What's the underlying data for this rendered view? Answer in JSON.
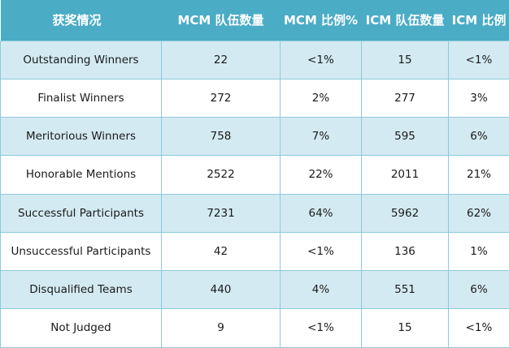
{
  "table": {
    "headers": [
      "获奖情况",
      "MCM 队伍数量",
      "MCM 比例%",
      "ICM 队伍数量",
      "ICM 比例"
    ],
    "rows": [
      [
        "Outstanding Winners",
        "22",
        "<1%",
        "15",
        "<1%"
      ],
      [
        "Finalist Winners",
        "272",
        "2%",
        "277",
        "3%"
      ],
      [
        "Meritorious Winners",
        "758",
        "7%",
        "595",
        "6%"
      ],
      [
        "Honorable Mentions",
        "2522",
        "22%",
        "2011",
        "21%"
      ],
      [
        "Successful Participants",
        "7231",
        "64%",
        "5962",
        "62%"
      ],
      [
        "Unsuccessful Participants",
        "42",
        "<1%",
        "136",
        "1%"
      ],
      [
        "Disqualified Teams",
        "440",
        "4%",
        "551",
        "6%"
      ],
      [
        "Not Judged",
        "9",
        "<1%",
        "15",
        "<1%"
      ]
    ]
  },
  "colors": {
    "header_bg": "#4bacc6",
    "band_bg": "#d3eaf2",
    "plain_bg": "#ffffff",
    "border": "#8ccadb"
  }
}
